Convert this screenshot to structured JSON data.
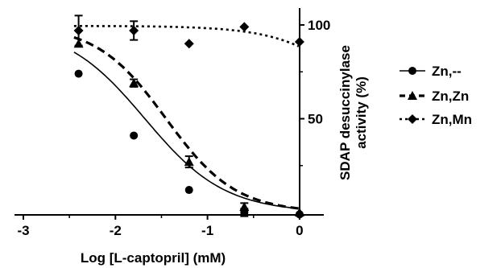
{
  "chart_data": {
    "type": "line",
    "x_axis": {
      "label_prefix": "Log [",
      "label_smallcaps": "L",
      "label_suffix": "-captopril] (mM)",
      "range": [
        -3,
        0.3
      ],
      "ticks": [
        -3,
        -2,
        -1,
        0
      ],
      "tick_labels": [
        "-3",
        "-2",
        "-1",
        "0"
      ]
    },
    "y_axis": {
      "label_line1": "SDAP desuccinylase",
      "label_line2": "activity (%)",
      "range": [
        0,
        108
      ],
      "ticks": [
        50,
        100
      ],
      "tick_labels": [
        "50",
        "100"
      ],
      "position": "right"
    },
    "grid": false,
    "legend_position": "right",
    "series": [
      {
        "name": "Zn,--",
        "marker": "circle",
        "line_style": "solid",
        "points": [
          {
            "x": -2.4,
            "y": 74,
            "err": 0
          },
          {
            "x": -1.8,
            "y": 41,
            "err": 0
          },
          {
            "x": -1.2,
            "y": 12,
            "err": 0
          },
          {
            "x": -0.6,
            "y": 0,
            "err": 2
          },
          {
            "x": 0.0,
            "y": -1,
            "err": 0
          }
        ],
        "fit": {
          "top": 100,
          "bottom": 0,
          "log_ic50": -1.68,
          "hill": 1.0
        }
      },
      {
        "name": "Zn,Zn",
        "marker": "triangle",
        "line_style": "dashed",
        "points": [
          {
            "x": -2.4,
            "y": 90,
            "err": 0
          },
          {
            "x": -1.8,
            "y": 69,
            "err": 2
          },
          {
            "x": -1.2,
            "y": 27,
            "err": 3
          },
          {
            "x": -0.6,
            "y": 3,
            "err": 2
          },
          {
            "x": 0.0,
            "y": 0,
            "err": 0
          }
        ],
        "fit": {
          "top": 100,
          "bottom": 0,
          "log_ic50": -1.45,
          "hill": 1.15
        }
      },
      {
        "name": "Zn,Mn",
        "marker": "diamond",
        "line_style": "dotted",
        "points": [
          {
            "x": -2.4,
            "y": 97,
            "err": 8
          },
          {
            "x": -1.8,
            "y": 97,
            "err": 5
          },
          {
            "x": -1.2,
            "y": 90,
            "err": 0
          },
          {
            "x": -0.6,
            "y": 99,
            "err": 0
          },
          {
            "x": 0.0,
            "y": 91,
            "err": 0
          }
        ],
        "fit": {
          "top": 99.5,
          "bottom": 0,
          "log_ic50": 0.9,
          "hill": 1.0
        }
      }
    ]
  }
}
